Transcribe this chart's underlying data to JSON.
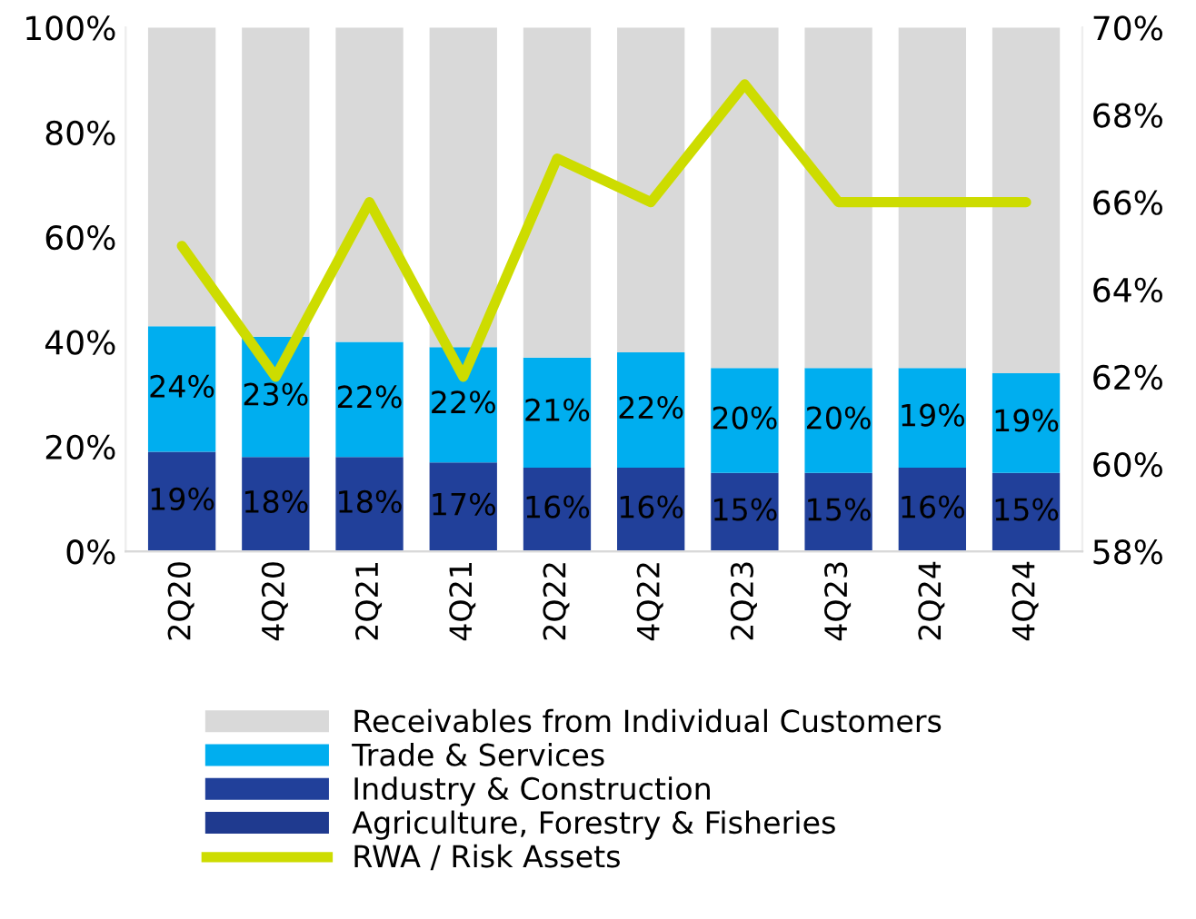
{
  "chart_data": {
    "type": "bar",
    "stacked": true,
    "categories": [
      "2Q20",
      "4Q20",
      "2Q21",
      "4Q21",
      "2Q22",
      "4Q22",
      "2Q23",
      "4Q23",
      "2Q24",
      "4Q24"
    ],
    "series": [
      {
        "name": "Agriculture, Forestry & Fisheries",
        "color": "#1f3a8f",
        "values": [
          null,
          null,
          null,
          null,
          null,
          null,
          null,
          null,
          null,
          null
        ]
      },
      {
        "name": "Industry & Construction",
        "color": "#21409a",
        "values": [
          19,
          18,
          18,
          17,
          16,
          16,
          15,
          15,
          16,
          15
        ],
        "value_labels": [
          "19%",
          "18%",
          "18%",
          "17%",
          "16%",
          "16%",
          "15%",
          "15%",
          "16%",
          "15%"
        ]
      },
      {
        "name": "Trade & Services",
        "color": "#00aeef",
        "values": [
          24,
          23,
          22,
          22,
          21,
          22,
          20,
          20,
          19,
          19
        ],
        "value_labels": [
          "24%",
          "23%",
          "22%",
          "22%",
          "21%",
          "22%",
          "20%",
          "20%",
          "19%",
          "19%"
        ]
      },
      {
        "name": "Receivables from Individual Customers",
        "color": "#d9d9d9",
        "values": [
          57,
          59,
          60,
          61,
          63,
          62,
          65,
          65,
          65,
          66
        ]
      },
      {
        "name": "RWA / Risk Assets",
        "type": "line",
        "axis": "y2",
        "color": "#cddc00",
        "values": [
          65,
          62,
          66,
          62,
          67,
          66,
          68.7,
          66,
          66,
          66
        ]
      }
    ],
    "ylim": [
      0,
      100
    ],
    "yticks": [
      {
        "value": 0,
        "label": "0%"
      },
      {
        "value": 20,
        "label": "20%"
      },
      {
        "value": 40,
        "label": "40%"
      },
      {
        "value": 60,
        "label": "60%"
      },
      {
        "value": 80,
        "label": "80%"
      },
      {
        "value": 100,
        "label": "100%"
      }
    ],
    "y2lim": [
      58,
      70
    ],
    "y2ticks": [
      {
        "value": 58,
        "label": "58%"
      },
      {
        "value": 60,
        "label": "60%"
      },
      {
        "value": 62,
        "label": "62%"
      },
      {
        "value": 64,
        "label": "64%"
      },
      {
        "value": 66,
        "label": "66%"
      },
      {
        "value": 68,
        "label": "68%"
      },
      {
        "value": 70,
        "label": "70%"
      }
    ],
    "grid": false,
    "legend": "bottom"
  }
}
